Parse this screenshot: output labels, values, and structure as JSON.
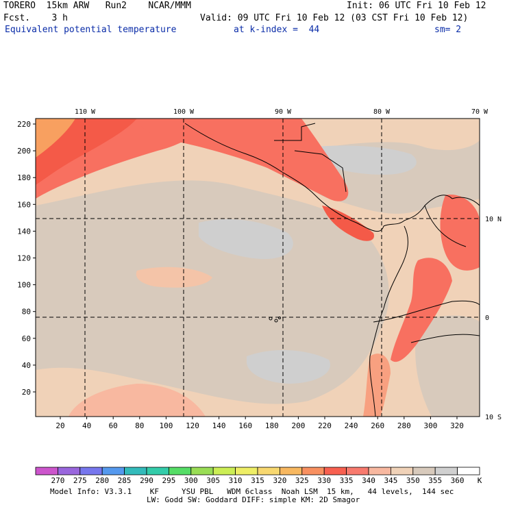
{
  "header": {
    "line1_left": "TORERO  15km ARW   Run2    NCAR/MMM",
    "line1_right": "Init: 06 UTC Fri 10 Feb 12",
    "line2_left": "Fcst.    3 h",
    "line2_right": "Valid: 09 UTC Fri 10 Feb 12 (03 CST Fri 10 Feb 12)",
    "field_title": "Equivalent potential temperature",
    "level": "at k-index =  44",
    "smoothing": "sm= 2"
  },
  "map": {
    "top_longitude_labels": [
      "110 W",
      "100 W",
      "90 W",
      "80 W",
      "70 W"
    ],
    "right_latitude_labels": [
      "10 N",
      "0",
      "10 S"
    ],
    "left_axis_ticks": [
      "220",
      "200",
      "180",
      "160",
      "140",
      "120",
      "100",
      "80",
      "60",
      "40",
      "20"
    ],
    "bottom_axis_ticks": [
      "20",
      "40",
      "60",
      "80",
      "100",
      "120",
      "140",
      "160",
      "180",
      "200",
      "220",
      "240",
      "260",
      "280",
      "300",
      "320"
    ]
  },
  "colorbar": {
    "unit": "K",
    "labels": [
      "270",
      "275",
      "280",
      "285",
      "290",
      "295",
      "300",
      "305",
      "310",
      "315",
      "320",
      "325",
      "330",
      "335",
      "340",
      "345",
      "350",
      "355",
      "360"
    ],
    "colors": [
      "#cc55cc",
      "#9966dd",
      "#7777ee",
      "#5599ee",
      "#33bbbb",
      "#33ccaa",
      "#55dd66",
      "#99dd55",
      "#ccee55",
      "#eeee66",
      "#f8d870",
      "#f8b860",
      "#f89060",
      "#f86050",
      "#f87a6e",
      "#f8b8a0",
      "#f0d2b8",
      "#d8cabc",
      "#d0d0d0",
      "#ffffff"
    ]
  },
  "model_info": {
    "line1": "Model Info: V3.3.1    KF     YSU PBL   WDM 6class  Noah LSM  15 km,   44 levels,  144 sec",
    "line2": "LW: Godd SW: Goddard DIFF: simple KM: 2D Smagor"
  }
}
